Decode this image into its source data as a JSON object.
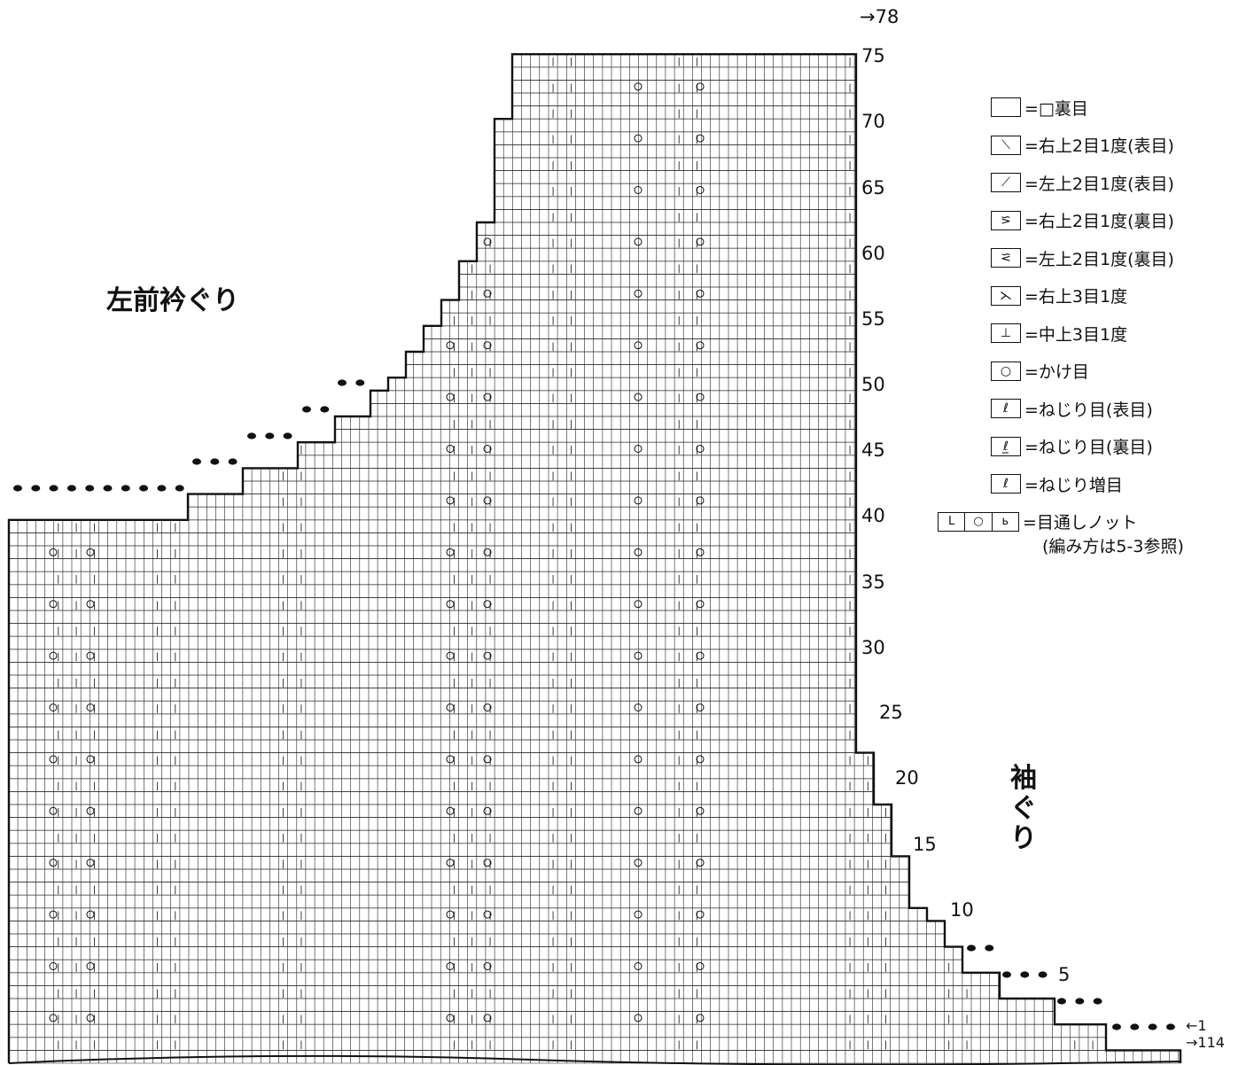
{
  "region_labels": {
    "neck": "左前衿ぐり",
    "armhole": "袖ぐり"
  },
  "row_labels": {
    "top_arrow": "→78",
    "rows": [
      "75",
      "70",
      "65",
      "60",
      "55",
      "50",
      "45",
      "40",
      "35",
      "30",
      "25",
      "20",
      "15",
      "10",
      "5"
    ],
    "start_left": "←1",
    "start_right": "→114"
  },
  "legend": {
    "items": [
      {
        "symbol": "",
        "symbol2": "—",
        "text": "=□裏目"
      },
      {
        "symbol": "⟍",
        "text": "=右上2目1度(表目)"
      },
      {
        "symbol": "⟋",
        "text": "=左上2目1度(表目)"
      },
      {
        "symbol": "⪞",
        "text": "=右上2目1度(裏目)"
      },
      {
        "symbol": "⪝",
        "text": "=左上2目1度(裏目)"
      },
      {
        "symbol": "⋋",
        "text": "=右上3目1度"
      },
      {
        "symbol": "⊥",
        "text": "=中上3目1度"
      },
      {
        "symbol": "○",
        "text": "=かけ目"
      },
      {
        "symbol": "ℓ",
        "text": "=ねじり目(表目)"
      },
      {
        "symbol": "ℓ̲",
        "text": "=ねじり目(裏目)"
      },
      {
        "symbol": "ℓ",
        "text": "=ねじり増目"
      }
    ],
    "knot": {
      "cells": [
        "L",
        "○",
        "ь"
      ],
      "text": "=目通しノット",
      "note": "(編み方は5-3参照)"
    }
  }
}
